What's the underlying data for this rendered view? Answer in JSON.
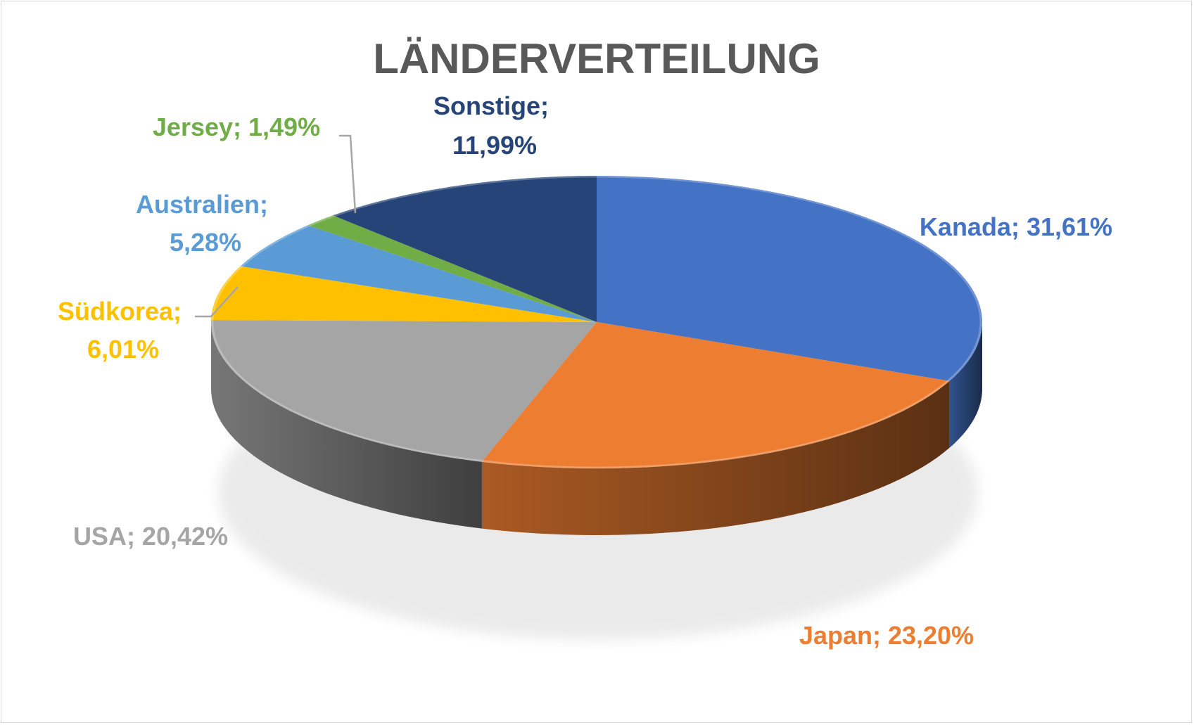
{
  "chart_data": {
    "type": "pie",
    "title": "LÄNDERVERTEILUNG",
    "three_d": true,
    "slices": [
      {
        "name": "Kanada",
        "value": 31.61,
        "label": "Kanada; 31,61%",
        "color": "#4472c4"
      },
      {
        "name": "Japan",
        "value": 23.2,
        "label": "Japan; 23,20%",
        "color": "#ed7d31"
      },
      {
        "name": "USA",
        "value": 20.42,
        "label": "USA; 20,42%",
        "color": "#a5a5a5"
      },
      {
        "name": "Südkorea",
        "value": 6.01,
        "label_lines": [
          "Südkorea;",
          "6,01%"
        ],
        "color": "#ffc000"
      },
      {
        "name": "Australien",
        "value": 5.28,
        "label_lines": [
          "Australien;",
          "5,28%"
        ],
        "color": "#5b9bd5"
      },
      {
        "name": "Jersey",
        "value": 1.49,
        "label": "Jersey; 1,49%",
        "color": "#70ad47"
      },
      {
        "name": "Sonstige",
        "value": 11.99,
        "label_lines": [
          "Sonstige;",
          "11,99%"
        ],
        "color": "#264478"
      }
    ],
    "label_colors": {
      "Kanada": "#4472c4",
      "Japan": "#ed7d31",
      "USA": "#a5a5a5",
      "Südkorea": "#ffc000",
      "Australien": "#5b9bd5",
      "Jersey": "#70ad47",
      "Sonstige": "#264478"
    }
  }
}
